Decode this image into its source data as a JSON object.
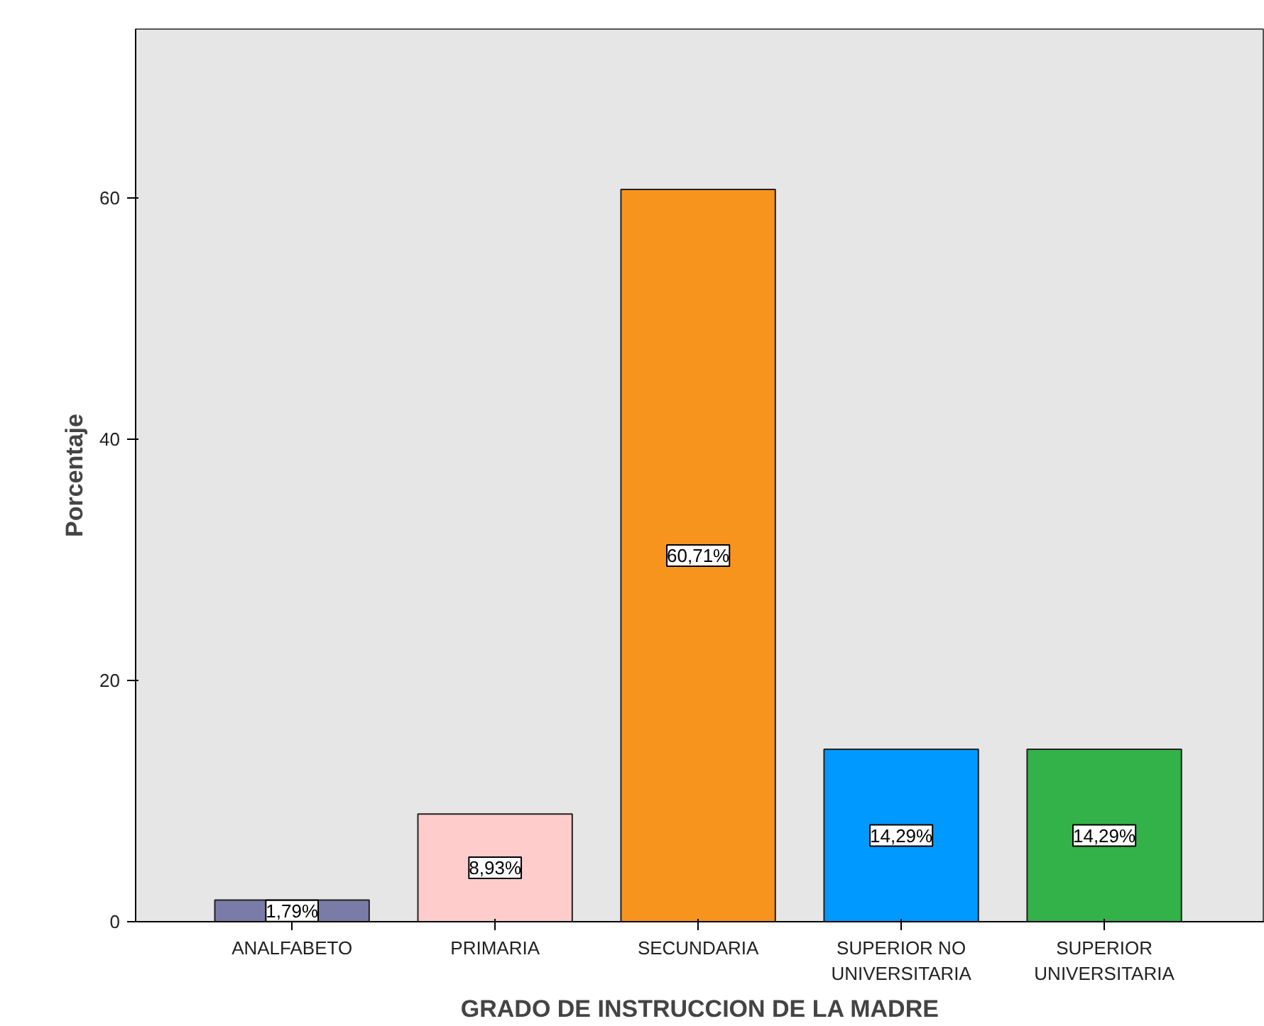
{
  "chart_data": {
    "type": "bar",
    "xlabel": "GRADO DE INSTRUCCION DE LA MADRE",
    "ylabel": "Porcentaje",
    "categories": [
      "ANALFABETO",
      "PRIMARIA",
      "SECUNDARIA",
      "SUPERIOR NO\nUNIVERSITARIA",
      "SUPERIOR\nUNIVERSITARIA"
    ],
    "values": [
      1.79,
      8.93,
      60.71,
      14.29,
      14.29
    ],
    "colors": [
      "#7b7ba8",
      "#ffcccc",
      "#f7941d",
      "#0099ff",
      "#33b249"
    ],
    "value_labels": [
      "1,79%",
      "8,93%",
      "60,71%",
      "14,29%",
      "14,29%"
    ],
    "ylim": [
      0,
      74
    ],
    "yticks": [
      0,
      20,
      40,
      60
    ],
    "grid": false
  }
}
